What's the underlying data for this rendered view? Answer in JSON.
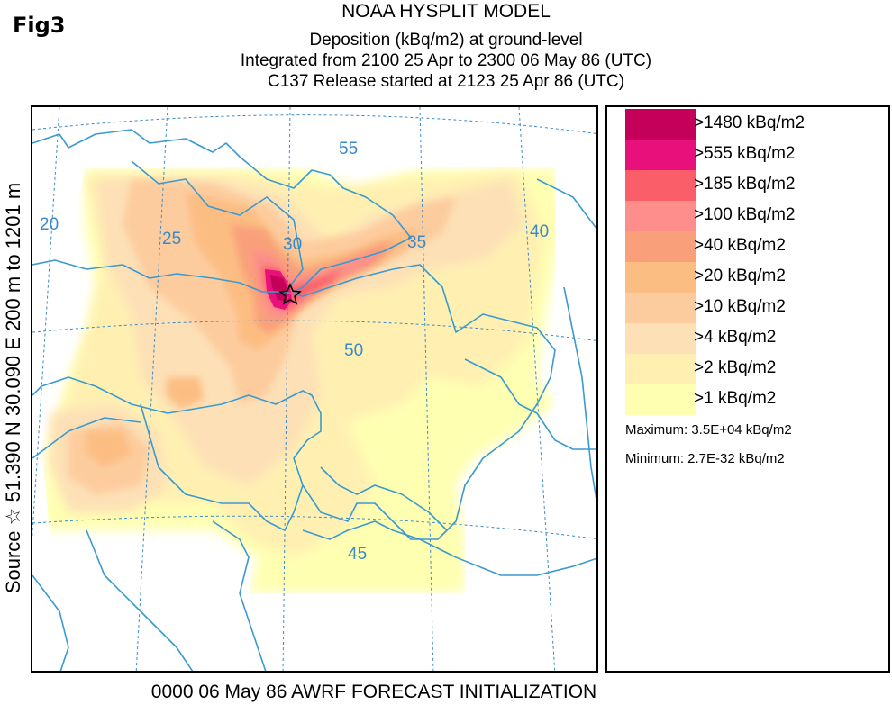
{
  "figure_label": "Fig3",
  "title_lines": [
    "NOAA HYSPLIT MODEL",
    "Deposition  (kBq/m2) at ground-level",
    "Integrated from 2100 25 Apr to 2300 06 May 86 (UTC)",
    "C137 Release started at 2123 25 Apr 86 (UTC)"
  ],
  "side_label": "Source ☆  51.390  N  30.090  E  200 m to 1201 m",
  "bottom_label": "0000 06 May 86 AWRF FORECAST INITIALIZATION",
  "source_marker": "star",
  "map": {
    "longitude_labels": [
      "20",
      "25",
      "30",
      "35",
      "40"
    ],
    "latitude_labels": [
      "55",
      "50",
      "45"
    ],
    "graticule_color": "#3a8ac8",
    "border_color": "#3a9ad0"
  },
  "legend": {
    "items": [
      {
        "label": ">1480 kBq/m2",
        "color": "#c4005a"
      },
      {
        "label": ">555 kBq/m2",
        "color": "#e8107a"
      },
      {
        "label": ">185 kBq/m2",
        "color": "#fa5e68"
      },
      {
        "label": ">100 kBq/m2",
        "color": "#fd8e8c"
      },
      {
        "label": ">40 kBq/m2",
        "color": "#f9a07a"
      },
      {
        "label": ">20 kBq/m2",
        "color": "#fcbd82"
      },
      {
        "label": ">10 kBq/m2",
        "color": "#fdcc9e"
      },
      {
        "label": ">4 kBq/m2",
        "color": "#fde0b6"
      },
      {
        "label": ">2 kBq/m2",
        "color": "#fff0b2"
      },
      {
        "label": ">1 kBq/m2",
        "color": "#ffffb2"
      }
    ],
    "maximum": "Maximum: 3.5E+04 kBq/m2",
    "minimum": "Minimum: 2.7E-32 kBq/m2"
  }
}
